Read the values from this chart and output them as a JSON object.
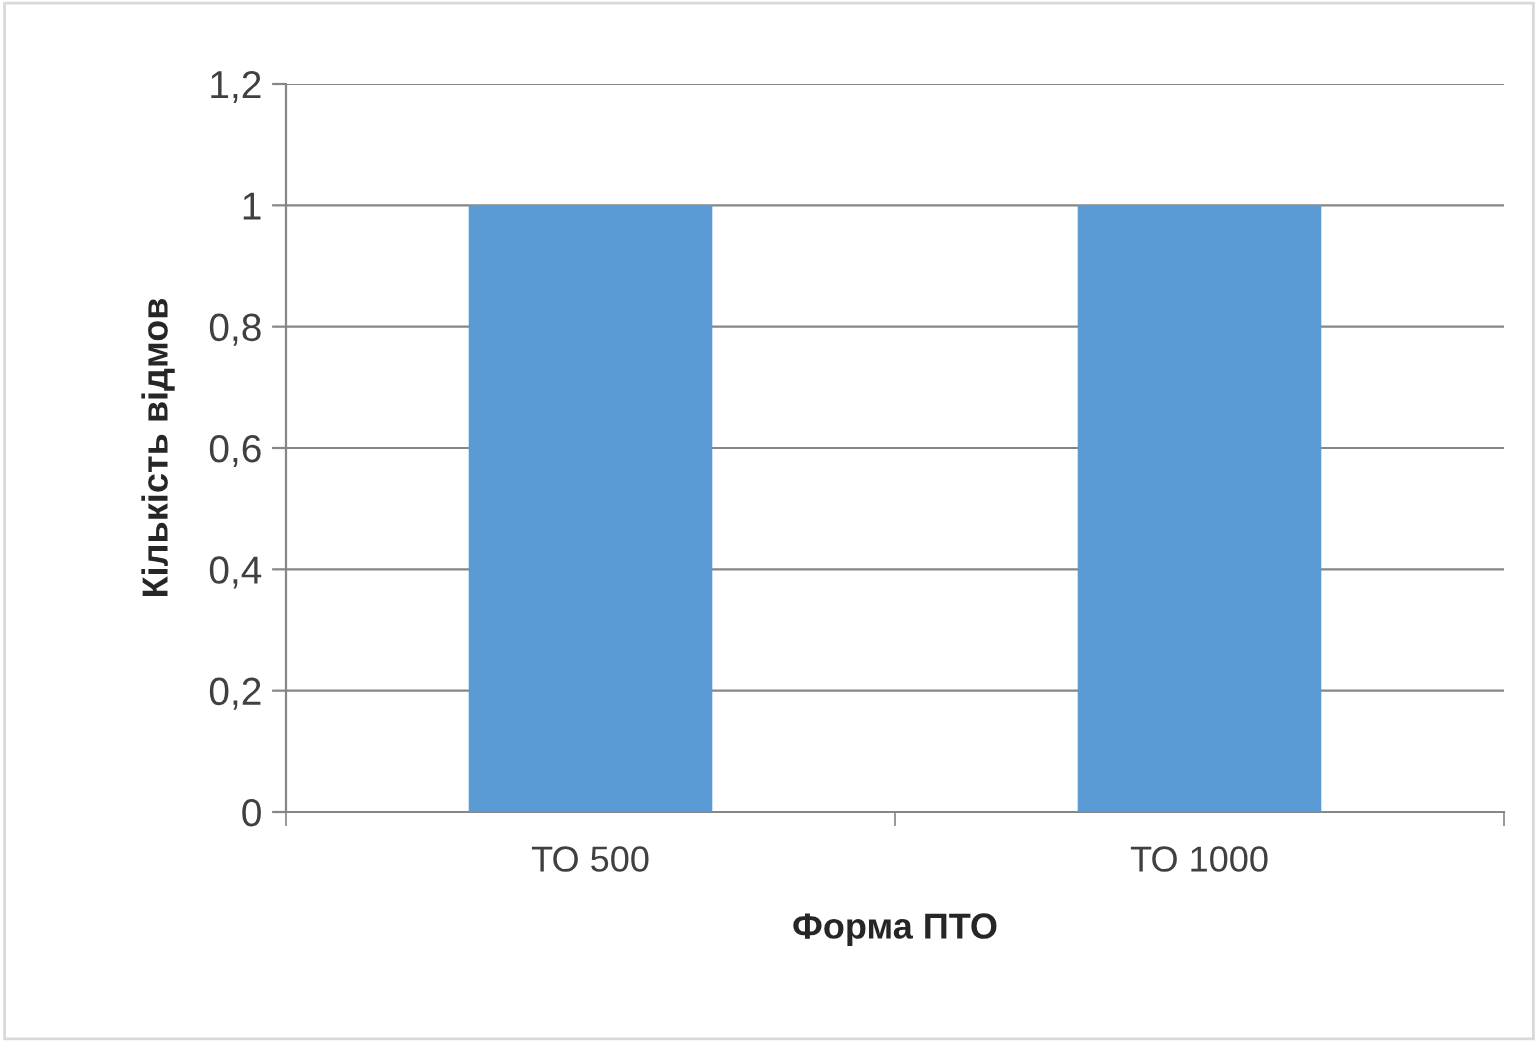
{
  "chart_data": {
    "type": "bar",
    "categories": [
      "ТО 500",
      "ТО 1000"
    ],
    "values": [
      1,
      1
    ],
    "color": "#5b9bd5",
    "xlabel": "Форма ПТО",
    "ylabel": "Кількість відмов",
    "ylim": [
      0,
      1.2
    ],
    "yticks": [
      0,
      {
        "value": 0.2,
        "label": "0,2"
      },
      {
        "value": 0.4,
        "label": "0,4"
      },
      {
        "value": 0.6,
        "label": "0,6"
      },
      {
        "value": 0.8,
        "label": "0,8"
      },
      1,
      {
        "value": 1.2,
        "label": "1,2"
      }
    ],
    "grid": "y",
    "legend": false
  }
}
